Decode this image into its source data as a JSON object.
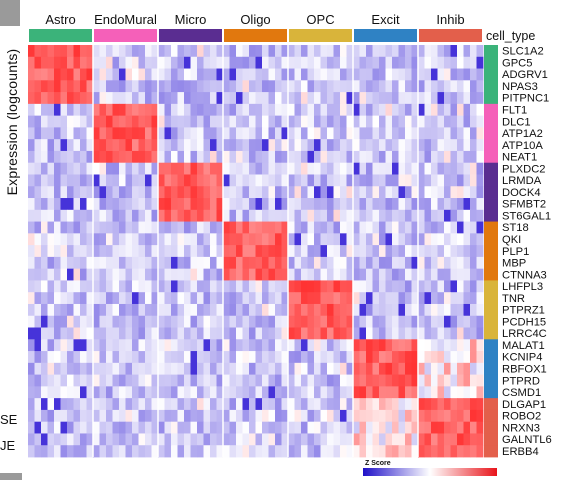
{
  "page": {
    "left_labels": [
      "SE",
      "JE"
    ]
  },
  "chart_data": {
    "type": "heatmap",
    "title": "",
    "ylabel": "Expression (logcounts)",
    "annotation_title": "cell_type",
    "colorbar": {
      "title": "Z Score",
      "colors": [
        "#1f10c8",
        "#ffffff",
        "#e8141a"
      ]
    },
    "columns": [
      {
        "name": "Astro",
        "color": "#3bb37a",
        "n": 10
      },
      {
        "name": "EndoMural",
        "color": "#f560b9",
        "n": 10
      },
      {
        "name": "Micro",
        "color": "#5a2d91",
        "n": 10
      },
      {
        "name": "Oligo",
        "color": "#e1780e",
        "n": 10
      },
      {
        "name": "OPC",
        "color": "#d9b43a",
        "n": 10
      },
      {
        "name": "Excit",
        "color": "#2f82c4",
        "n": 10
      },
      {
        "name": "Inhib",
        "color": "#e35f4b",
        "n": 10
      }
    ],
    "genes": [
      {
        "name": "SLC1A2",
        "type": "Astro"
      },
      {
        "name": "GPC5",
        "type": "Astro"
      },
      {
        "name": "ADGRV1",
        "type": "Astro"
      },
      {
        "name": "NPAS3",
        "type": "Astro"
      },
      {
        "name": "PITPNC1",
        "type": "Astro"
      },
      {
        "name": "FLT1",
        "type": "EndoMural"
      },
      {
        "name": "DLC1",
        "type": "EndoMural"
      },
      {
        "name": "ATP1A2",
        "type": "EndoMural"
      },
      {
        "name": "ATP10A",
        "type": "EndoMural"
      },
      {
        "name": "NEAT1",
        "type": "EndoMural"
      },
      {
        "name": "PLXDC2",
        "type": "Micro"
      },
      {
        "name": "LRMDA",
        "type": "Micro"
      },
      {
        "name": "DOCK4",
        "type": "Micro"
      },
      {
        "name": "SFMBT2",
        "type": "Micro"
      },
      {
        "name": "ST6GAL1",
        "type": "Micro"
      },
      {
        "name": "ST18",
        "type": "Oligo"
      },
      {
        "name": "QKI",
        "type": "Oligo"
      },
      {
        "name": "PLP1",
        "type": "Oligo"
      },
      {
        "name": "MBP",
        "type": "Oligo"
      },
      {
        "name": "CTNNA3",
        "type": "Oligo"
      },
      {
        "name": "LHFPL3",
        "type": "OPC"
      },
      {
        "name": "TNR",
        "type": "OPC"
      },
      {
        "name": "PTPRZ1",
        "type": "OPC"
      },
      {
        "name": "PCDH15",
        "type": "OPC"
      },
      {
        "name": "LRRC4C",
        "type": "OPC"
      },
      {
        "name": "MALAT1",
        "type": "Excit"
      },
      {
        "name": "KCNIP4",
        "type": "Excit"
      },
      {
        "name": "RBFOX1",
        "type": "Excit"
      },
      {
        "name": "PTPRD",
        "type": "Excit"
      },
      {
        "name": "CSMD1",
        "type": "Excit"
      },
      {
        "name": "DLGAP1",
        "type": "Inhib"
      },
      {
        "name": "ROBO2",
        "type": "Inhib"
      },
      {
        "name": "NRXN3",
        "type": "Inhib"
      },
      {
        "name": "GALNTL6",
        "type": "Inhib"
      },
      {
        "name": "ERBB4",
        "type": "Inhib"
      }
    ],
    "pattern": "marker genes high (red) in their own cell type block, low to neutral (blue-white) elsewhere; Excit and Inhib markers partially shared"
  }
}
